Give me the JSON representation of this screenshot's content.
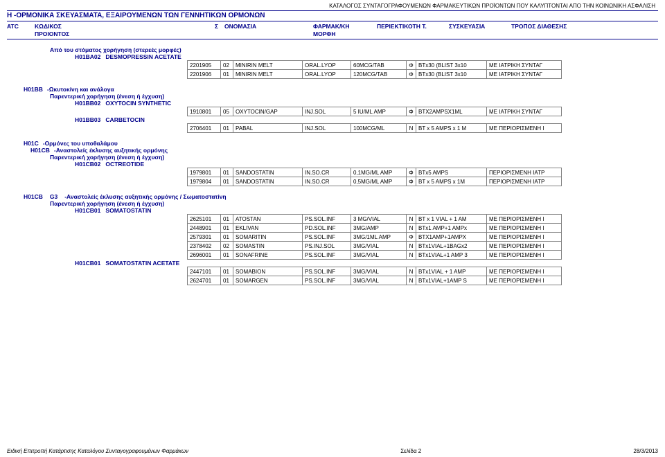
{
  "header": {
    "catalog_title": "ΚΑΤΑΛΟΓΟΣ ΣΥΝΤΑΓΟΓΡΑΦΟΥΜΕΝΩΝ ΦΑΡΜΑΚΕΥΤΙΚΩΝ ΠΡΟΪΟΝΤΩΝ ΠΟΥ ΚΑΛΥΠΤΟΝΤΑΙ ΑΠΟ ΤΗΝ ΚΟΙΝΩΝΙΚΗ ΑΣΦΑΛΙΣΗ",
    "section_H": "H    -ΟΡΜΟΝΙΚΑ ΣΚΕΥΑΣΜΑΤΑ, ΕΞΑΙΡΟΥΜΕΝΩΝ ΤΩΝ ΓΕΝΝΗΤΙΚΩΝ ΟΡΜΟΝΩΝ"
  },
  "columns": {
    "atc": "ATC",
    "code": "ΚΩΔΙΚΟΣ",
    "s": "Σ",
    "name": "ΟΝΟΜΑΣΙΑ",
    "form": "ΦΑΡΜΑΚ/ΚΗ",
    "content": "ΠΕΡΙΕΚΤΙΚΟΤΗ Τ.",
    "pack": "ΣΥΣΚΕΥΑΣΙΑ",
    "disp": "ΤΡΟΠΟΣ ΔΙΑΘΕΣΗΣ",
    "prod": "ΠΡΟΙΟΝΤΟΣ",
    "morph": "ΜΟΡΦΗ"
  },
  "sections": [
    {
      "admin_route": "Από του στόματος χορήγηση (στερεές μορφές)",
      "code": "H01BA02",
      "drug": "DESMOPRESSIN ACETATE",
      "rows": [
        {
          "c": "2201905",
          "s": "02",
          "n": "MINIRIN MELT",
          "f": "ORAL.LYOP",
          "str": "60MCG/TAB",
          "cls": "Φ",
          "pk": "BTx30 (BLIST 3x10",
          "d": "ΜΕ ΙΑΤΡΙΚΗ ΣΥΝΤΑΓ"
        },
        {
          "c": "2201906",
          "s": "01",
          "n": "MINIRIN MELT",
          "f": "ORAL.LYOP",
          "str": "120MCG/TAB",
          "cls": "Φ",
          "pk": "BTx30 (BLIST 3x10",
          "d": "ΜΕ ΙΑΤΡΙΚΗ ΣΥΝΤΑΓ"
        }
      ]
    },
    {
      "badge": "H01BB",
      "badge_label": "-Ωκυτοκίνη και ανάλογα",
      "admin_route": "Παρεντερική χορήγηση (ένεση ή έγχυση)",
      "code": "H01BB02",
      "drug": "OXYTOCIN SYNTHETIC",
      "rows": [
        {
          "c": "1910801",
          "s": "05",
          "n": "OXYTOCIN/GAP",
          "f": "INJ.SOL",
          "str": "5 IU/ML  AMP",
          "cls": "Φ",
          "pk": "BTX2AMPSX1ML",
          "d": "ΜΕ ΙΑΤΡΙΚΗ ΣΥΝΤΑΓ"
        }
      ],
      "code2": "H01BB03",
      "drug2": "CARBETOCIN",
      "rows2": [
        {
          "c": "2706401",
          "s": "01",
          "n": "PABAL",
          "f": "INJ.SOL",
          "str": "100MCG/ML",
          "cls": "N",
          "pk": "BT x 5 AMPS x 1 M",
          "d": "ΜΕ ΠΕΡΙΟΡΙΣΜΕΝΗ Ι"
        }
      ]
    },
    {
      "badge": "H01C",
      "badge_label": "-Ορμόνες του υποθαλάμου",
      "badge2": "H01CB",
      "badge2_label": "-Αναστολείς έκλυσης αυξητικής ορμόνης",
      "admin_route": "Παρεντερική χορήγηση (ένεση ή έγχυση)",
      "code": "H01CB02",
      "drug": "OCTREOTIDE",
      "rows": [
        {
          "c": "1979801",
          "s": "01",
          "n": "SANDOSTATIN",
          "f": "IN.SO.CR",
          "str": "0,1MG/ML AMP",
          "cls": "Φ",
          "pk": "BTx5 AMPS",
          "d": "ΠΕΡΙΟΡΙΣΜΕΝΗ ΙΑΤΡ"
        },
        {
          "c": "1979804",
          "s": "01",
          "n": "SANDOSTATIN",
          "f": "IN.SO.CR",
          "str": "0,5MG/ML AMP",
          "cls": "Φ",
          "pk": "BT x 5 AMPS x 1M",
          "d": "ΠΕΡΙΟΡΙΣΜΕΝΗ ΙΑΤΡ"
        }
      ]
    },
    {
      "g3code": "H01CB",
      "g3sub": "G3",
      "g3label": "-Αναστολείς έκλυσης αυξητικής ορμόνης / Σωματοστατίνη",
      "admin_route": "Παρεντερική χορήγηση (ένεση ή έγχυση)",
      "code": "H01CB01",
      "drug": "SOMATOSTATIN",
      "rows": [
        {
          "c": "2625101",
          "s": "01",
          "n": "ATOSTAN",
          "f": "PS.SOL.INF",
          "str": "3 MG/VIAL",
          "cls": "N",
          "pk": "BT x 1 VIAL + 1 AM",
          "d": "ΜΕ ΠΕΡΙΟΡΙΣΜΕΝΗ Ι"
        },
        {
          "c": "2448901",
          "s": "01",
          "n": "EKLIVAN",
          "f": "PD.SOL.INF",
          "str": "3MG/AMP",
          "cls": "N",
          "pk": "BTx1 AMP+1 AMPx",
          "d": "ΜΕ ΠΕΡΙΟΡΙΣΜΕΝΗ Ι"
        },
        {
          "c": "2579301",
          "s": "01",
          "n": "SOMARITIN",
          "f": "PS.SOL.INF",
          "str": "3MG/1ML AMP",
          "cls": "Φ",
          "pk": "BTX1AMP+1AMPX",
          "d": "ΜΕ ΠΕΡΙΟΡΙΣΜΕΝΗ Ι"
        },
        {
          "c": "2378402",
          "s": "02",
          "n": "SOMASTIN",
          "f": "PS.INJ.SOL",
          "str": "3MG/VIAL",
          "cls": "N",
          "pk": "BTx1VIAL+1BAGx2",
          "d": "ΜΕ ΠΕΡΙΟΡΙΣΜΕΝΗ Ι"
        },
        {
          "c": "2696001",
          "s": "01",
          "n": "SONAFRINE",
          "f": "PS.SOL.INF",
          "str": "3MG/VIAL",
          "cls": "N",
          "pk": "BTx1VIAL+1 AMP 3",
          "d": "ΜΕ ΠΕΡΙΟΡΙΣΜΕΝΗ Ι"
        }
      ],
      "code2": "H01CB01",
      "drug2": "SOMATOSTATIN ACETATE",
      "rows2": [
        {
          "c": "2447101",
          "s": "01",
          "n": "SOMABION",
          "f": "PS.SOL.INF",
          "str": "3MG/VIAL",
          "cls": "N",
          "pk": "BTx1VIAL + 1 AMP",
          "d": "ΜΕ ΠΕΡΙΟΡΙΣΜΕΝΗ Ι"
        },
        {
          "c": "2624701",
          "s": "01",
          "n": "SOMARGEN",
          "f": "PS.SOL.INF",
          "str": "3MG/VIAL",
          "cls": "N",
          "pk": "BTx1VIAL+1AMP S",
          "d": "ΜΕ ΠΕΡΙΟΡΙΣΜΕΝΗ Ι"
        }
      ]
    }
  ],
  "footer": {
    "left": "Ειδική Επιτροπή Κατάρτισης Καταλόγου Συνταγογραφουμένων Φαρμάκων",
    "page": "Σελίδα 2",
    "date": "28/3/2013"
  }
}
